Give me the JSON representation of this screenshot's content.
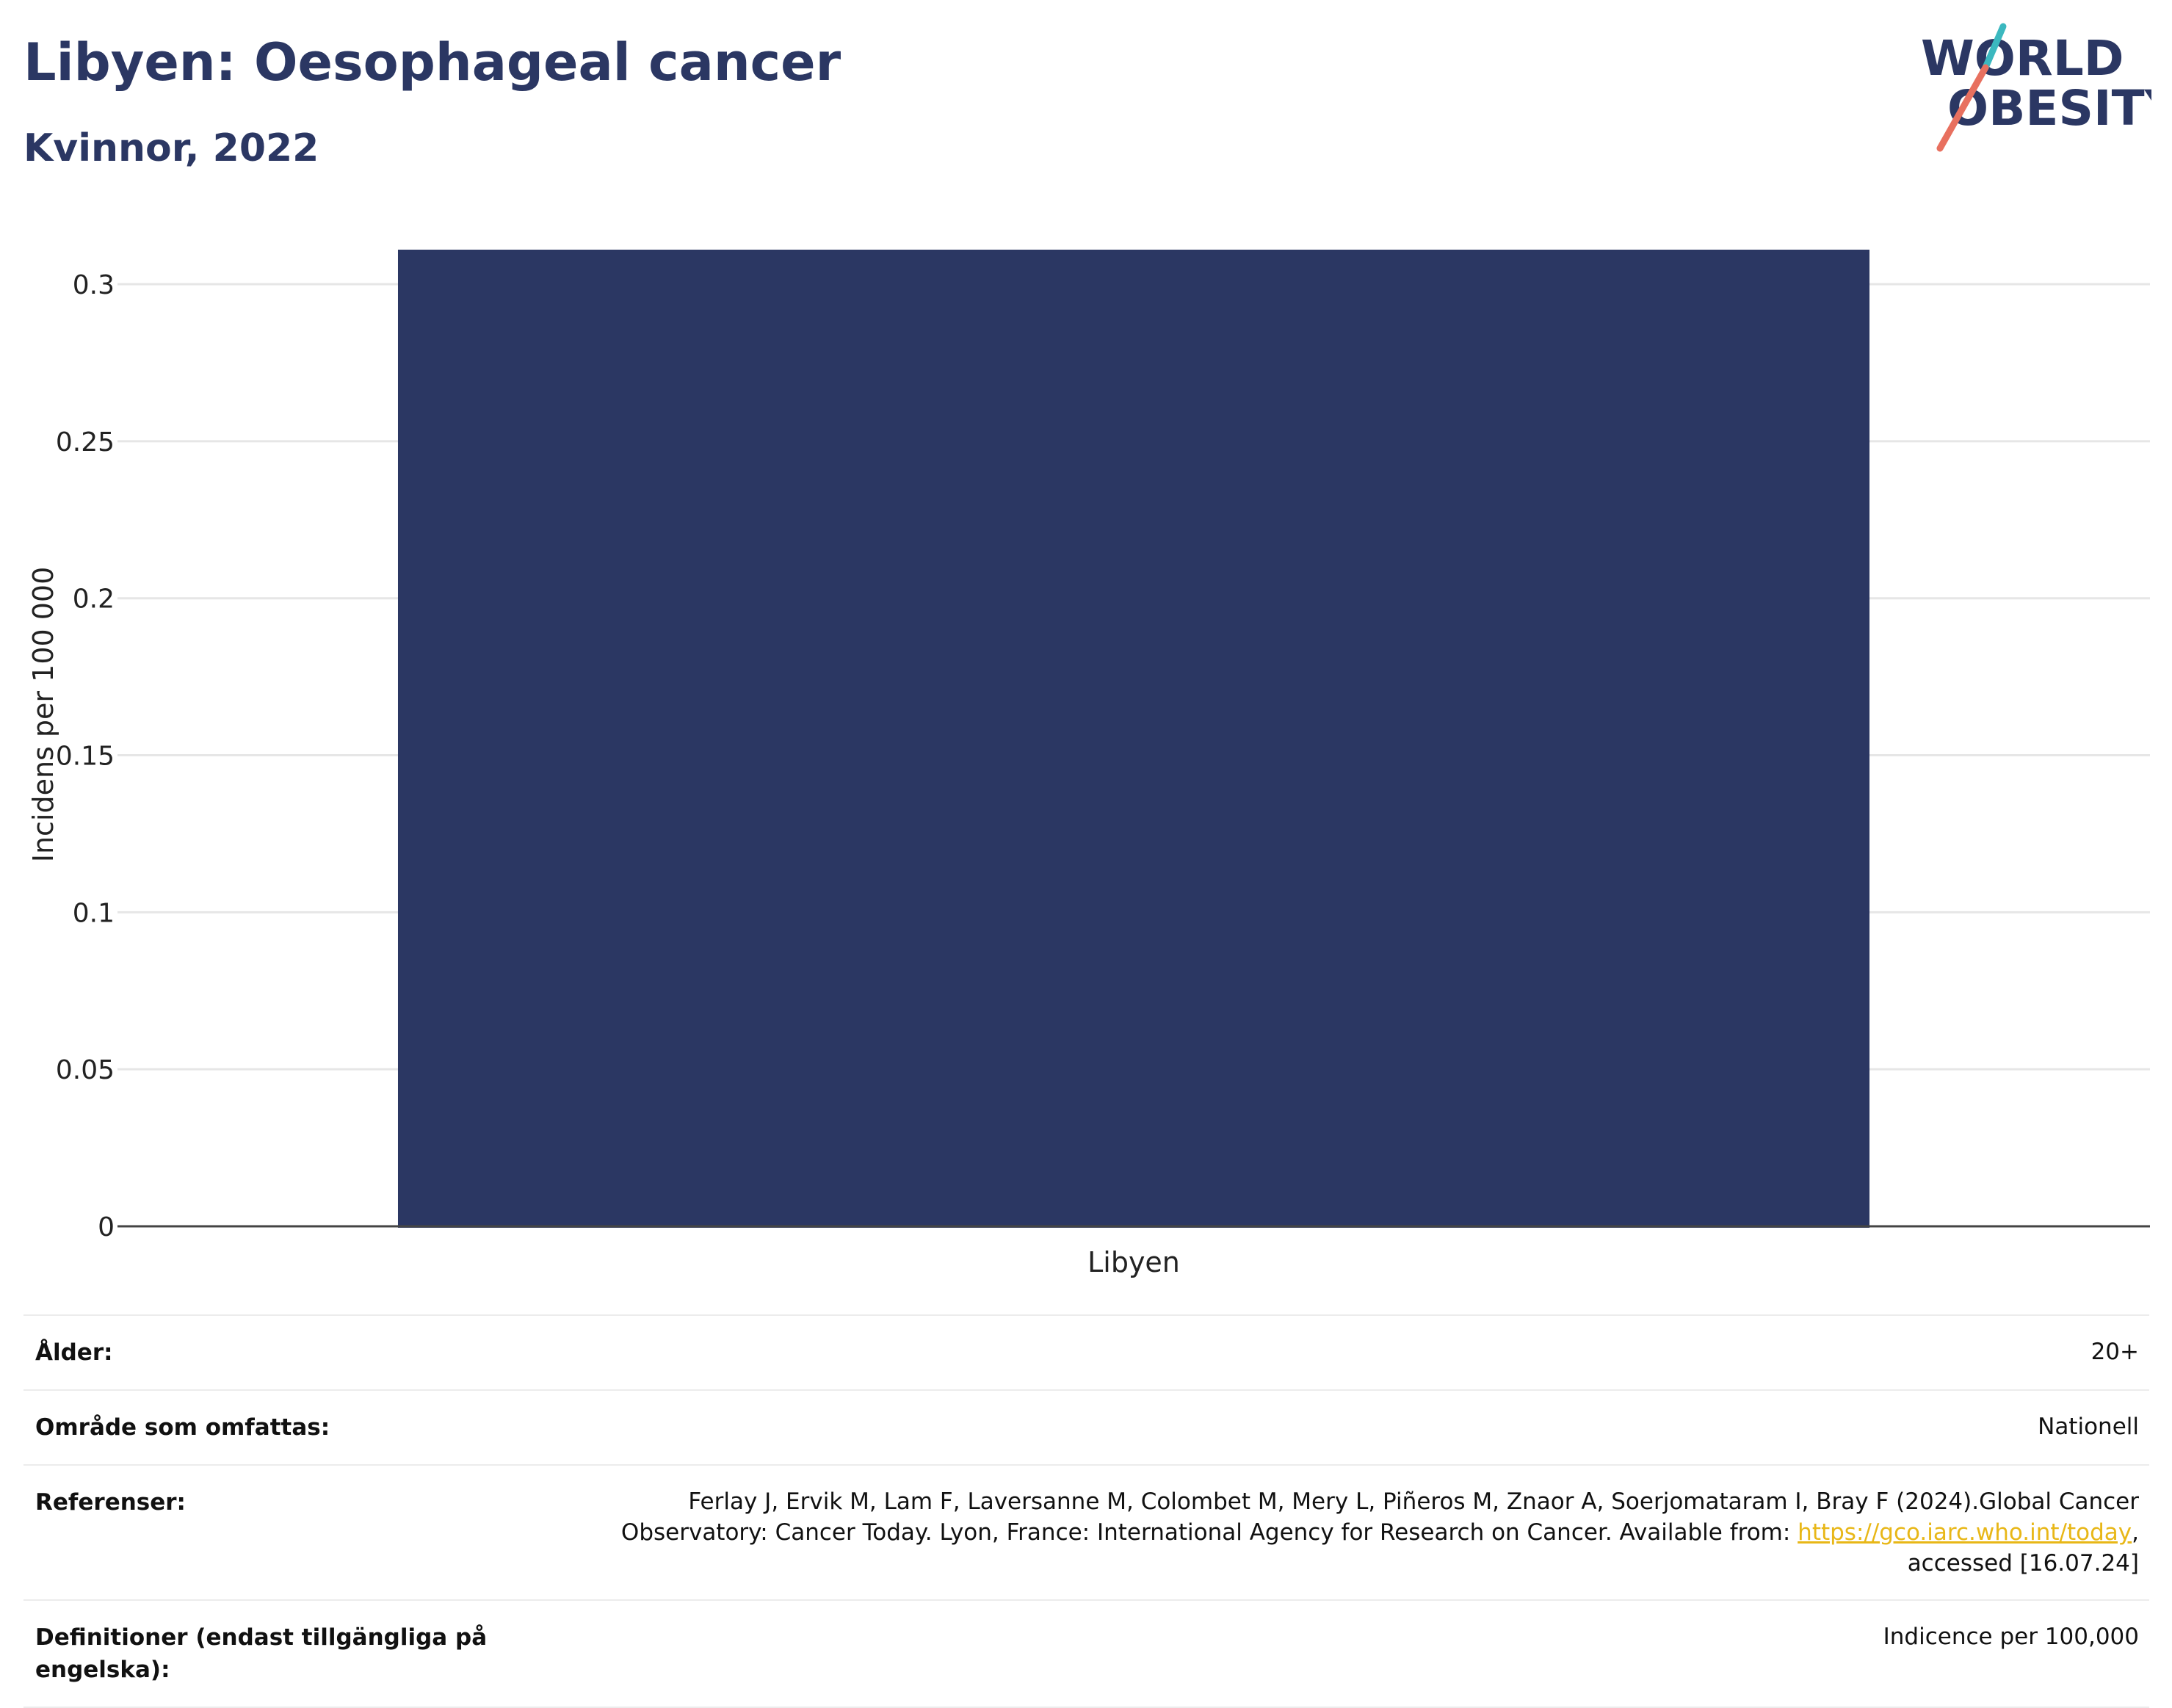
{
  "header": {
    "title": "Libyen: Oesophageal cancer",
    "subtitle": "Kvinnor, 2022"
  },
  "logo": {
    "line1": "WORLD",
    "line2": "OBESITY",
    "colors": {
      "text": "#2b3763",
      "slash_teal": "#3bb8bf",
      "slash_coral": "#e8705f"
    }
  },
  "chart_data": {
    "type": "bar",
    "categories": [
      "Libyen"
    ],
    "values": [
      0.311
    ],
    "ylabel": "Incidens per 100 000",
    "xlabel": "",
    "ylim": [
      0,
      0.311
    ],
    "yticks": [
      0,
      0.05,
      0.1,
      0.15,
      0.2,
      0.25,
      0.3
    ],
    "ytick_labels": [
      "0",
      "0.05",
      "0.1",
      "0.15",
      "0.2",
      "0.25",
      "0.3"
    ],
    "grid": true,
    "bar_color": "#2b3763"
  },
  "info": {
    "rows": [
      {
        "label": "Ålder:",
        "value": "20+"
      },
      {
        "label": "Område som omfattas:",
        "value": "Nationell"
      },
      {
        "label": "Referenser:",
        "value_line1": "Ferlay J, Ervik M, Lam F, Laversanne M, Colombet M, Mery L, Piñeros M, Znaor A, Soerjomataram I, Bray F (2024).Global Cancer",
        "value_line2_pre": "Observatory: Cancer Today. Lyon, France: International Agency for Research on Cancer. Available from: ",
        "value_link": "https://gco.iarc.who.int/today",
        "value_line2_post": ",",
        "value_line3": "accessed [16.07.24]"
      },
      {
        "label": "Definitioner (endast tillgängliga på engelska):",
        "value": "Indicence per 100,000"
      }
    ]
  }
}
